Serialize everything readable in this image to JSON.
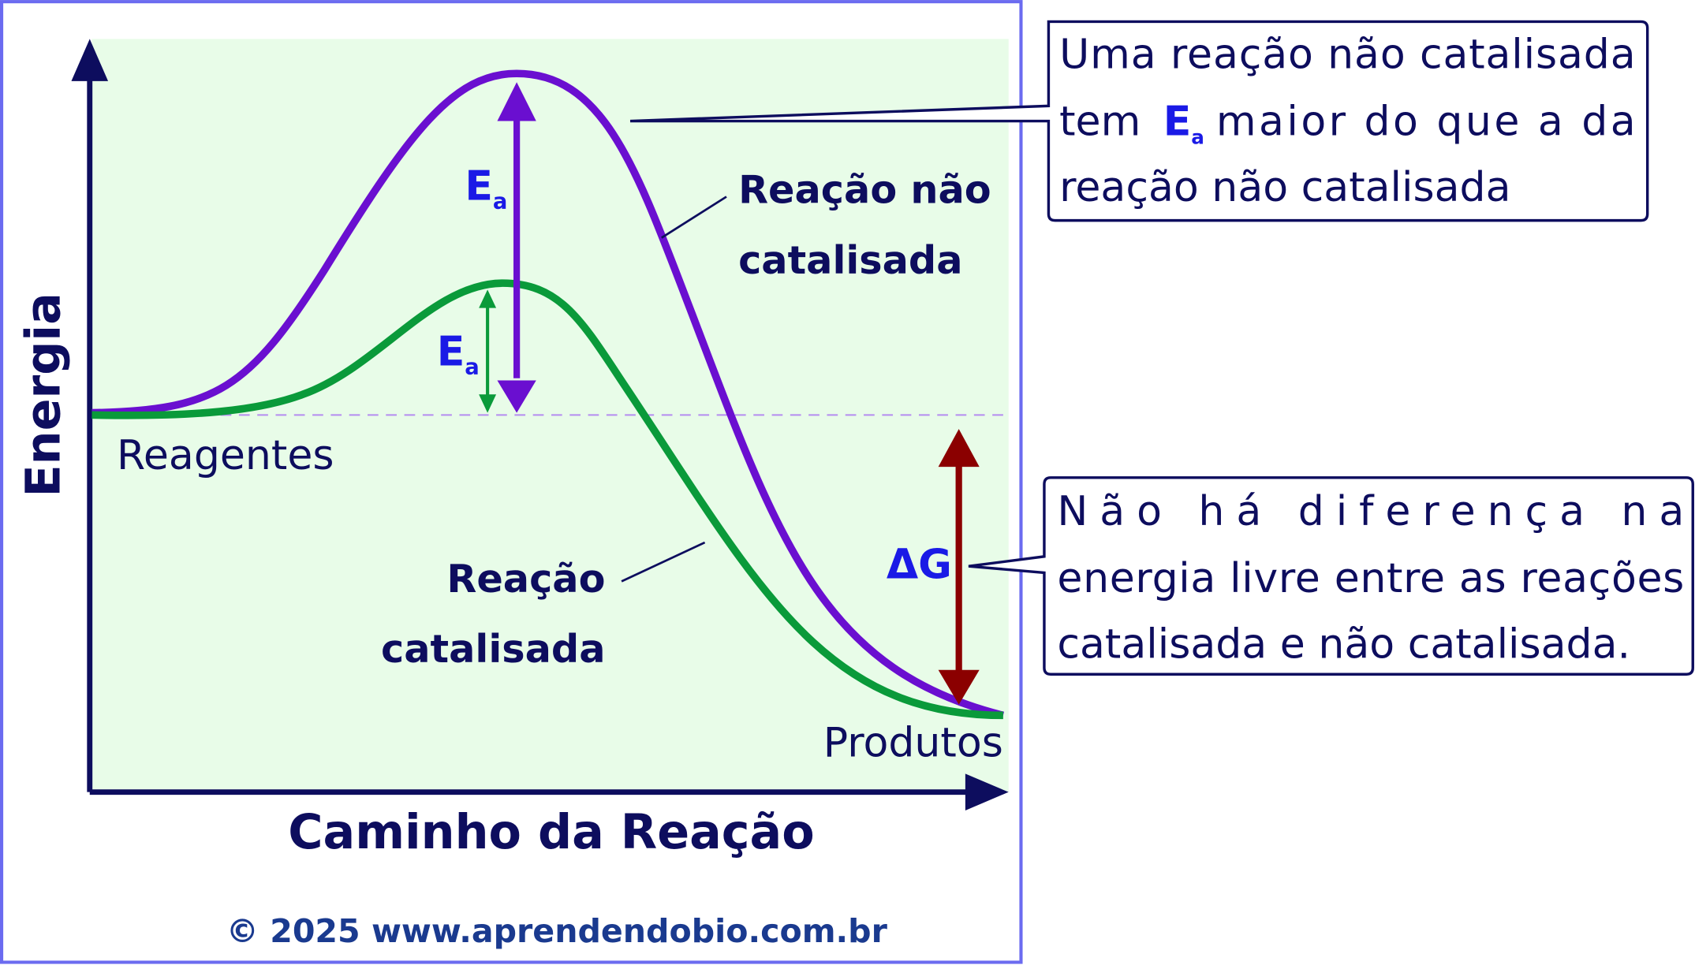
{
  "axes": {
    "y_label": "Energia",
    "x_label": "Caminho da Reação"
  },
  "labels": {
    "reagentes": "Reagentes",
    "produtos": "Produtos",
    "uncatalyzed": [
      "Reação não",
      "catalisada"
    ],
    "catalyzed": [
      "Reação",
      "catalisada"
    ],
    "ea_uncatalyzed": {
      "main": "E",
      "sub": "a"
    },
    "ea_catalyzed": {
      "main": "E",
      "sub": "a"
    },
    "delta_g": "ΔG"
  },
  "callouts": [
    {
      "lines": [
        "Uma reação não catalisada",
        "tem",
        "E",
        "a",
        "maior do que a da",
        "reação não catalisada"
      ]
    },
    {
      "lines": [
        "Não há diferença na",
        "energia livre entre as reações",
        "catalisada e não catalisada."
      ]
    }
  ],
  "footer": "© 2025 www.aprendendobio.com.br"
}
